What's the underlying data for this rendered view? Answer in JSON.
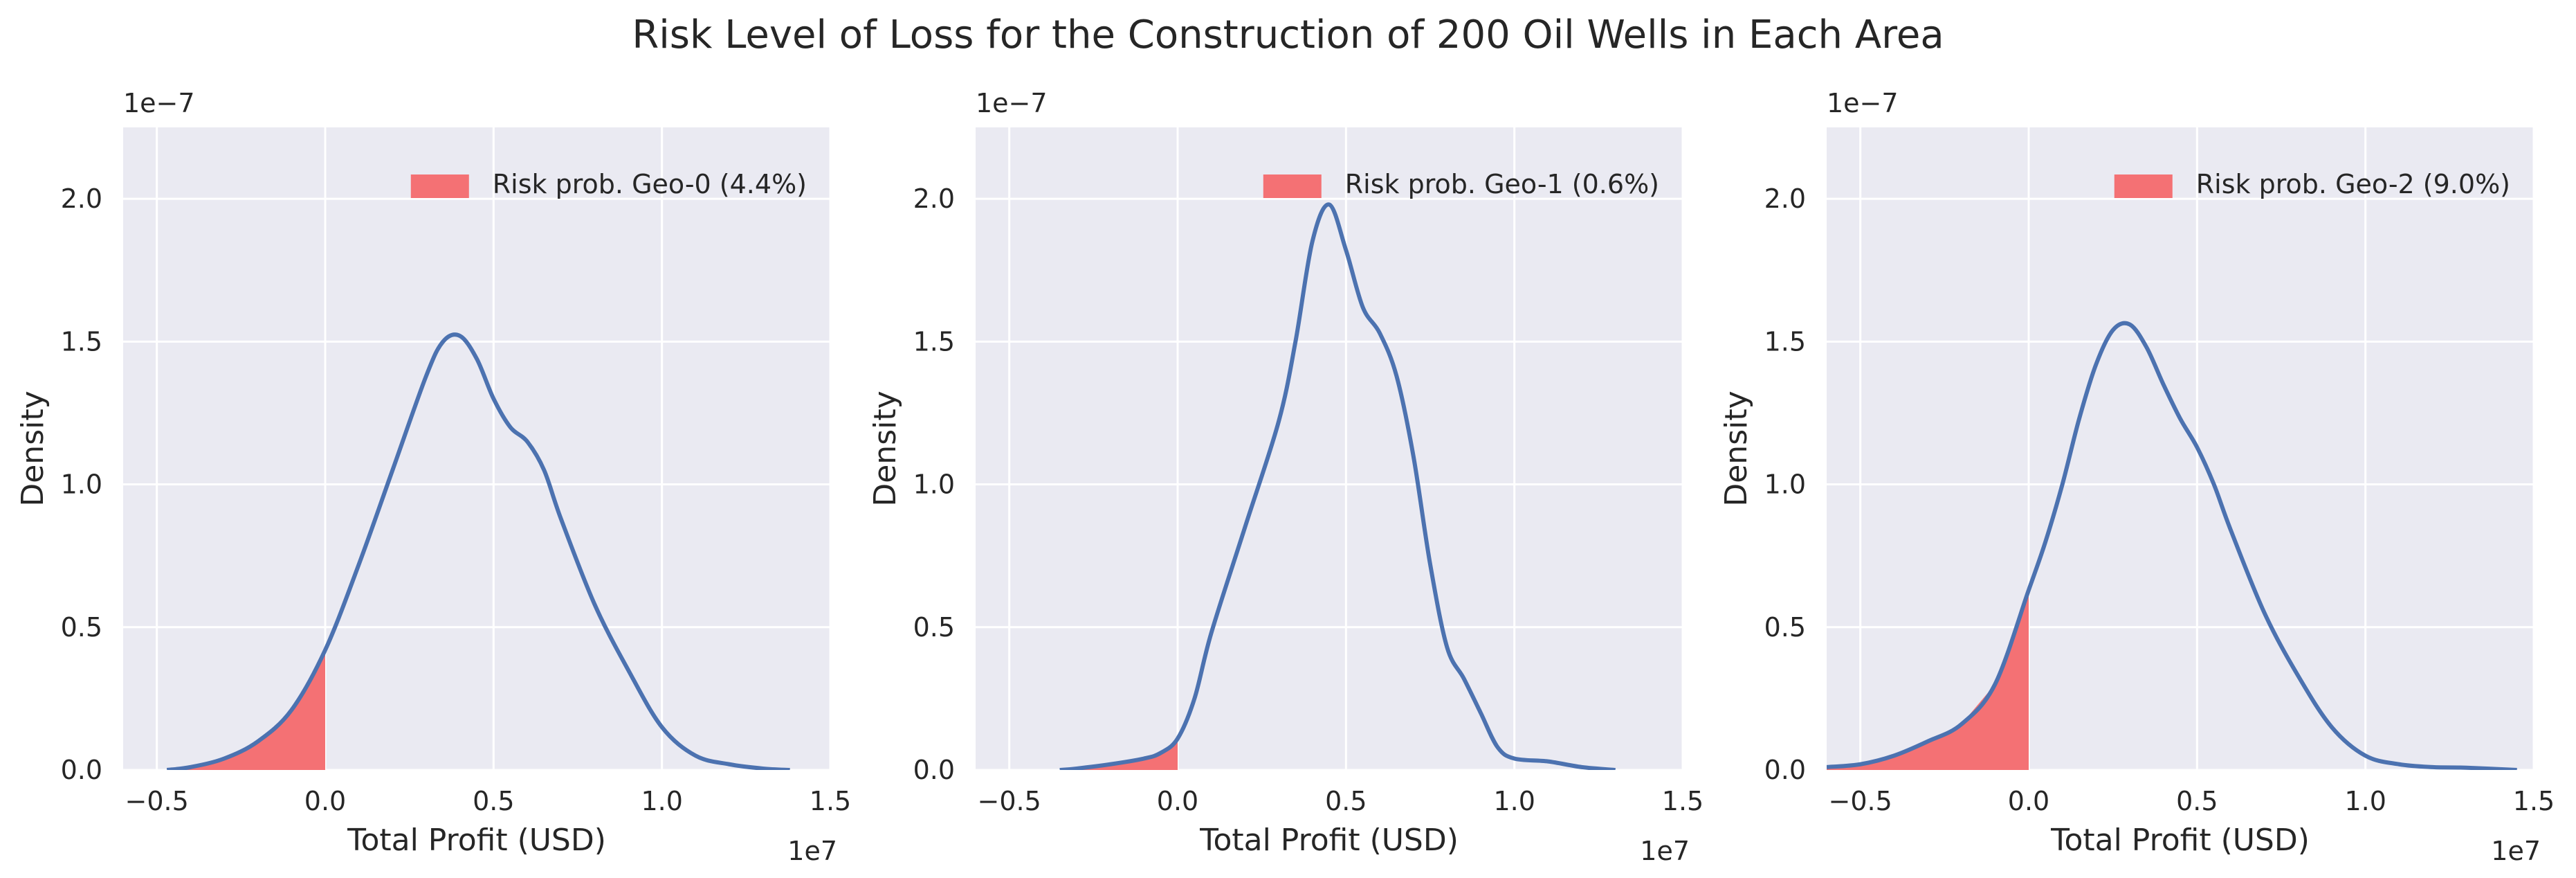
{
  "figure_title": "Risk Level of Loss for the Construction of 200 Oil Wells in Each Area",
  "colors": {
    "axes_background": "#EAEAF2",
    "grid": "#FFFFFF",
    "curve": "#4C72B0",
    "risk_fill": "#F47174"
  },
  "chart_data": [
    {
      "type": "area",
      "title": "",
      "xlabel": "Total Profit (USD)",
      "ylabel": "Density",
      "x_scale_label": "1e7",
      "y_scale_label": "1e−7",
      "xlim": [
        -0.6,
        1.5
      ],
      "ylim": [
        0,
        2.25
      ],
      "x_ticks": [
        -0.5,
        0.0,
        0.5,
        1.0,
        1.5
      ],
      "x_tick_labels": [
        "−0.5",
        "0.0",
        "0.5",
        "1.0",
        "1.5"
      ],
      "y_ticks": [
        0.0,
        0.5,
        1.0,
        1.5,
        2.0
      ],
      "y_tick_labels": [
        "0.0",
        "0.5",
        "1.0",
        "1.5",
        "2.0"
      ],
      "grid": true,
      "legend": "top-right",
      "legend_label": "Risk prob. Geo-0 (4.4%)",
      "risk_fill_below_x": 0.0,
      "series": [
        {
          "x": [
            -0.47,
            -0.4,
            -0.3,
            -0.2,
            -0.1,
            0.0,
            0.1,
            0.2,
            0.3,
            0.35,
            0.4,
            0.45,
            0.5,
            0.55,
            0.6,
            0.65,
            0.7,
            0.8,
            0.9,
            1.0,
            1.1,
            1.2,
            1.3,
            1.38
          ],
          "y": [
            0.0,
            0.01,
            0.04,
            0.1,
            0.21,
            0.42,
            0.72,
            1.05,
            1.38,
            1.5,
            1.52,
            1.44,
            1.3,
            1.2,
            1.15,
            1.05,
            0.88,
            0.58,
            0.35,
            0.15,
            0.05,
            0.02,
            0.005,
            0.0
          ]
        }
      ]
    },
    {
      "type": "area",
      "title": "",
      "xlabel": "Total Profit (USD)",
      "ylabel": "Density",
      "x_scale_label": "1e7",
      "y_scale_label": "1e−7",
      "xlim": [
        -0.6,
        1.5
      ],
      "ylim": [
        0,
        2.25
      ],
      "x_ticks": [
        -0.5,
        0.0,
        0.5,
        1.0,
        1.5
      ],
      "x_tick_labels": [
        "−0.5",
        "0.0",
        "0.5",
        "1.0",
        "1.5"
      ],
      "y_ticks": [
        0.0,
        0.5,
        1.0,
        1.5,
        2.0
      ],
      "y_tick_labels": [
        "0.0",
        "0.5",
        "1.0",
        "1.5",
        "2.0"
      ],
      "grid": true,
      "legend": "top-right",
      "legend_label": "Risk prob. Geo-1 (0.6%)",
      "risk_fill_below_x": 0.0,
      "series": [
        {
          "x": [
            -0.35,
            -0.3,
            -0.2,
            -0.1,
            -0.05,
            0.0,
            0.05,
            0.1,
            0.2,
            0.3,
            0.35,
            0.4,
            0.45,
            0.5,
            0.55,
            0.6,
            0.65,
            0.7,
            0.75,
            0.8,
            0.85,
            0.9,
            0.95,
            1.0,
            1.1,
            1.2,
            1.3
          ],
          "y": [
            0.0,
            0.005,
            0.02,
            0.04,
            0.06,
            0.11,
            0.25,
            0.48,
            0.85,
            1.22,
            1.5,
            1.85,
            1.98,
            1.82,
            1.62,
            1.53,
            1.38,
            1.1,
            0.72,
            0.43,
            0.32,
            0.2,
            0.08,
            0.04,
            0.03,
            0.01,
            0.0
          ]
        }
      ]
    },
    {
      "type": "area",
      "title": "",
      "xlabel": "Total Profit (USD)",
      "ylabel": "Density",
      "x_scale_label": "1e7",
      "y_scale_label": "1e−7",
      "xlim": [
        -0.6,
        1.5
      ],
      "ylim": [
        0,
        2.25
      ],
      "x_ticks": [
        -0.5,
        0.0,
        0.5,
        1.0,
        1.5
      ],
      "x_tick_labels": [
        "−0.5",
        "0.0",
        "0.5",
        "1.0",
        "1.5"
      ],
      "y_ticks": [
        0.0,
        0.5,
        1.0,
        1.5,
        2.0
      ],
      "y_tick_labels": [
        "0.0",
        "0.5",
        "1.0",
        "1.5",
        "2.0"
      ],
      "grid": true,
      "legend": "top-right",
      "legend_label": "Risk prob. Geo-2 (9.0%)",
      "risk_fill_below_x": 0.0,
      "series": [
        {
          "x": [
            -0.6,
            -0.5,
            -0.4,
            -0.3,
            -0.2,
            -0.1,
            0.0,
            0.05,
            0.1,
            0.15,
            0.2,
            0.25,
            0.3,
            0.35,
            0.4,
            0.45,
            0.5,
            0.55,
            0.6,
            0.7,
            0.8,
            0.9,
            1.0,
            1.1,
            1.2,
            1.3,
            1.45
          ],
          "y": [
            0.01,
            0.02,
            0.05,
            0.1,
            0.16,
            0.3,
            0.63,
            0.8,
            1.0,
            1.23,
            1.42,
            1.54,
            1.56,
            1.48,
            1.35,
            1.23,
            1.13,
            1.0,
            0.84,
            0.55,
            0.33,
            0.15,
            0.05,
            0.02,
            0.01,
            0.008,
            0.0
          ]
        }
      ]
    }
  ]
}
